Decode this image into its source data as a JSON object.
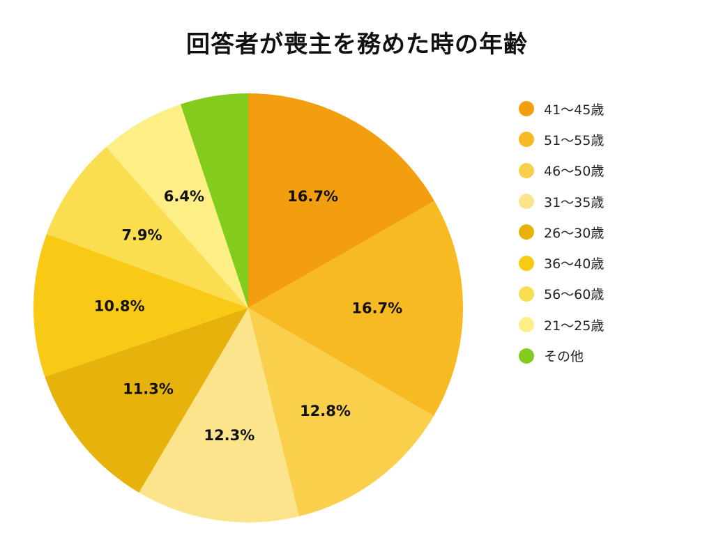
{
  "chart_data": {
    "type": "pie",
    "title": "回答者が喪主を務めた時の年齢",
    "start_angle_deg": 0,
    "direction": "clockwise",
    "legend_position": "right",
    "slices": [
      {
        "label": "41〜45歳",
        "value": 16.7,
        "value_label": "16.7%",
        "color": "#F39E0F"
      },
      {
        "label": "51〜55歳",
        "value": 16.7,
        "value_label": "16.7%",
        "color": "#F8BA22"
      },
      {
        "label": "46〜50歳",
        "value": 12.8,
        "value_label": "12.8%",
        "color": "#F9CF4C"
      },
      {
        "label": "31〜35歳",
        "value": 12.3,
        "value_label": "12.3%",
        "color": "#FCE48C"
      },
      {
        "label": "26〜30歳",
        "value": 11.3,
        "value_label": "11.3%",
        "color": "#E8B20C"
      },
      {
        "label": "36〜40歳",
        "value": 10.8,
        "value_label": "10.8%",
        "color": "#F8CA16"
      },
      {
        "label": "56〜60歳",
        "value": 7.9,
        "value_label": "7.9%",
        "color": "#FBDD50"
      },
      {
        "label": "21〜25歳",
        "value": 6.4,
        "value_label": "6.4%",
        "color": "#FEEE86"
      },
      {
        "label": "その他",
        "value": 5.1,
        "value_label": "",
        "color": "#83CB1D"
      }
    ]
  }
}
